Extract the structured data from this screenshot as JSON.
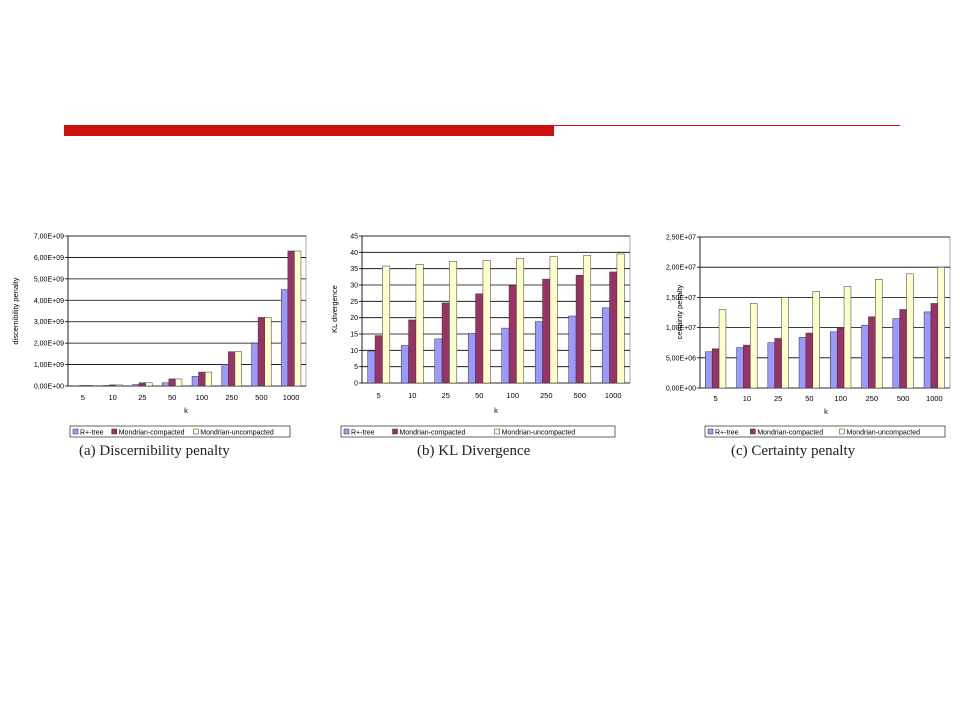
{
  "colors": {
    "accent_bar": "#cc1111",
    "series": [
      "#9999ff",
      "#993366",
      "#ffffcc"
    ]
  },
  "chart_data": [
    {
      "type": "bar",
      "caption": "(a) Discernibility penalty",
      "xlabel": "k",
      "ylabel": "discernibility penalty",
      "categories": [
        "5",
        "10",
        "25",
        "50",
        "100",
        "250",
        "500",
        "1000"
      ],
      "ylim": [
        0,
        7000000000
      ],
      "ytick_values": [
        0,
        1000000000,
        2000000000,
        3000000000,
        4000000000,
        5000000000,
        6000000000,
        7000000000
      ],
      "ytick_labels": [
        "0,00E+00",
        "1,00E+09",
        "2,00E+09",
        "3,00E+09",
        "4,00E+09",
        "5,00E+09",
        "6,00E+09",
        "7,00E+09"
      ],
      "grid": true,
      "legend": "bottom",
      "series": [
        {
          "name": "R+-tree",
          "values": [
            10000000,
            25000000,
            70000000,
            150000000,
            450000000,
            1000000000,
            2000000000,
            4500000000
          ]
        },
        {
          "name": "Mondrian-compacted",
          "values": [
            25000000,
            50000000,
            150000000,
            330000000,
            650000000,
            1600000000,
            3200000000,
            6300000000
          ]
        },
        {
          "name": "Mondrian-uncompacted",
          "values": [
            25000000,
            50000000,
            150000000,
            330000000,
            650000000,
            1600000000,
            3200000000,
            6300000000
          ]
        }
      ]
    },
    {
      "type": "bar",
      "caption": "(b) KL Divergence",
      "xlabel": "k",
      "ylabel": "KL divergence",
      "categories": [
        "5",
        "10",
        "25",
        "50",
        "100",
        "250",
        "500",
        "1000"
      ],
      "ylim": [
        0,
        45
      ],
      "ytick_values": [
        0,
        5,
        10,
        15,
        20,
        25,
        30,
        35,
        40,
        45
      ],
      "ytick_labels": [
        "0",
        "5",
        "10",
        "15",
        "20",
        "25",
        "30",
        "35",
        "40",
        "45"
      ],
      "grid": true,
      "legend": "bottom",
      "series": [
        {
          "name": "R+-tree",
          "values": [
            9.8,
            11.5,
            13.5,
            15.2,
            16.8,
            18.8,
            20.5,
            23
          ]
        },
        {
          "name": "Mondrian-compacted",
          "values": [
            14.5,
            19.3,
            24.5,
            27.3,
            29.8,
            31.8,
            33,
            34
          ]
        },
        {
          "name": "Mondrian-uncompacted",
          "values": [
            35.8,
            36.3,
            37.2,
            37.5,
            38.2,
            38.7,
            39,
            39.5
          ]
        }
      ]
    },
    {
      "type": "bar",
      "caption": "(c) Certainty penalty",
      "xlabel": "k",
      "ylabel": "certainty penalty",
      "categories": [
        "5",
        "10",
        "25",
        "50",
        "100",
        "250",
        "500",
        "1000"
      ],
      "ylim": [
        0,
        25000000
      ],
      "ytick_values": [
        0,
        5000000,
        10000000,
        15000000,
        20000000,
        25000000
      ],
      "ytick_labels": [
        "0,00E+00",
        "5,00E+06",
        "1,00E+07",
        "1,50E+07",
        "2,00E+07",
        "2,50E+07"
      ],
      "grid": true,
      "legend": "bottom",
      "series": [
        {
          "name": "R+-tree",
          "values": [
            6000000,
            6700000,
            7500000,
            8400000,
            9300000,
            10400000,
            11500000,
            12600000
          ]
        },
        {
          "name": "Mondrian-compacted",
          "values": [
            6500000,
            7100000,
            8200000,
            9100000,
            9900000,
            11800000,
            13000000,
            14000000
          ]
        },
        {
          "name": "Mondrian-uncompacted",
          "values": [
            13000000,
            14000000,
            15000000,
            16000000,
            16800000,
            18000000,
            18900000,
            20000000
          ]
        }
      ]
    }
  ]
}
